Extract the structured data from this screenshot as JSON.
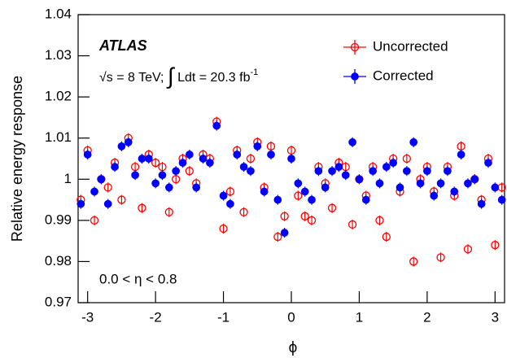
{
  "chart_data": {
    "type": "scatter",
    "x_label": "ϕ",
    "y_label": "Relative energy response",
    "experiment_label": "ATLAS",
    "lumi_label": {
      "main": "√s = 8 TeV;",
      "integral": "∫",
      "rest": "Ldt = 20.3 fb",
      "sup": "-1"
    },
    "region_label": "0.0 < η < 0.8",
    "xlim": [
      -3.14,
      3.14
    ],
    "ylim": [
      0.97,
      1.04
    ],
    "xticks": [
      -3,
      -2,
      -1,
      0,
      1,
      2,
      3
    ],
    "yticks": [
      0.97,
      0.98,
      0.99,
      1,
      1.01,
      1.02,
      1.03,
      1.04
    ],
    "legend_position": "upper right",
    "x": [
      -3.1,
      -3.0,
      -2.9,
      -2.8,
      -2.7,
      -2.6,
      -2.5,
      -2.4,
      -2.3,
      -2.2,
      -2.1,
      -2.0,
      -1.9,
      -1.8,
      -1.7,
      -1.6,
      -1.5,
      -1.4,
      -1.3,
      -1.2,
      -1.1,
      -1.0,
      -0.9,
      -0.8,
      -0.7,
      -0.6,
      -0.5,
      -0.4,
      -0.3,
      -0.2,
      -0.1,
      0.0,
      0.1,
      0.2,
      0.3,
      0.4,
      0.5,
      0.6,
      0.7,
      0.8,
      0.9,
      1.0,
      1.1,
      1.2,
      1.3,
      1.4,
      1.5,
      1.6,
      1.7,
      1.8,
      1.9,
      2.0,
      2.1,
      2.2,
      2.3,
      2.4,
      2.5,
      2.6,
      2.7,
      2.8,
      2.9,
      3.0,
      3.1
    ],
    "series": [
      {
        "name": "Uncorrected",
        "color": "#ff0000",
        "marker": "open",
        "error": 0.0012,
        "values": [
          0.995,
          1.007,
          0.99,
          1.0,
          0.998,
          1.004,
          0.995,
          1.01,
          1.003,
          0.993,
          1.006,
          1.004,
          1.003,
          0.992,
          1.0,
          1.005,
          1.002,
          0.999,
          1.006,
          1.005,
          1.014,
          0.988,
          0.997,
          1.007,
          0.992,
          1.005,
          1.009,
          0.998,
          1.008,
          0.986,
          0.991,
          1.007,
          0.996,
          0.991,
          0.99,
          1.003,
          0.999,
          0.993,
          1.004,
          1.003,
          0.989,
          1.0,
          0.996,
          1.003,
          0.99,
          0.986,
          1.005,
          0.997,
          1.005,
          0.98,
          1.0,
          1.003,
          0.997,
          0.981,
          1.003,
          0.996,
          1.008,
          0.983,
          1.0,
          0.995,
          1.005,
          0.984,
          0.998
        ]
      },
      {
        "name": "Corrected",
        "color": "#0000ff",
        "marker": "filled",
        "error": 0.0012,
        "values": [
          0.994,
          1.006,
          0.997,
          1.0,
          0.994,
          1.003,
          1.008,
          1.009,
          1.001,
          1.005,
          1.005,
          0.999,
          1.001,
          0.998,
          1.002,
          1.004,
          1.006,
          0.998,
          1.005,
          1.004,
          1.013,
          0.996,
          0.994,
          1.006,
          1.003,
          1.002,
          1.008,
          0.997,
          1.006,
          0.995,
          0.987,
          1.005,
          0.999,
          0.997,
          0.995,
          1.002,
          0.998,
          1.002,
          1.003,
          1.001,
          1.009,
          1.0,
          0.995,
          1.002,
          0.999,
          1.003,
          1.004,
          0.998,
          1.002,
          1.009,
          0.999,
          1.002,
          0.996,
          0.999,
          1.002,
          0.997,
          1.006,
          0.999,
          1.0,
          0.994,
          1.004,
          0.998,
          0.995
        ]
      }
    ]
  }
}
